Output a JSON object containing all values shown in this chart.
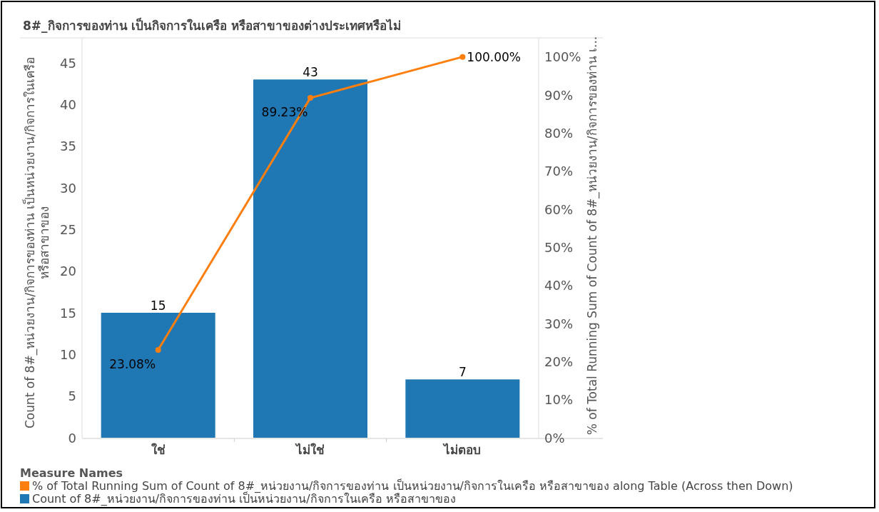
{
  "chart_data": {
    "type": "bar",
    "title": "8#_กิจการของท่าน เป็นกิจการในเครือ หรือสาขาของต่างประเทศหรือไม่",
    "ylabel": "Count of 8#_หน่วยงาน/กิจการของท่าน เป็นหน่วยงาน/กิจการในเครือ หรือสาขาของ",
    "y2label": "% of Total Running Sum of Count of 8#_หน่วยงาน/กิจการของท่าน เ...",
    "legend_title": "Measure Names",
    "legend": "bottom",
    "marker": "circle",
    "categories": [
      "ใช่",
      "ไม่ใช่",
      "ไม่ตอบ"
    ],
    "ylim": [
      0,
      48
    ],
    "yticks": [
      0,
      5,
      10,
      15,
      20,
      25,
      30,
      35,
      40,
      45
    ],
    "y2lim": [
      0,
      105
    ],
    "y2ticks": [
      {
        "value": 0,
        "label": "0%"
      },
      {
        "value": 10,
        "label": "10%"
      },
      {
        "value": 20,
        "label": "20%"
      },
      {
        "value": 30,
        "label": "30%"
      },
      {
        "value": 40,
        "label": "40%"
      },
      {
        "value": 50,
        "label": "50%"
      },
      {
        "value": 60,
        "label": "60%"
      },
      {
        "value": 70,
        "label": "70%"
      },
      {
        "value": 80,
        "label": "80%"
      },
      {
        "value": 90,
        "label": "90%"
      },
      {
        "value": 100,
        "label": "100%"
      }
    ],
    "series": [
      {
        "name": "% of Total Running Sum of Count of 8#_หน่วยงาน/กิจการของท่าน เป็นหน่วยงาน/กิจการในเครือ หรือสาขาของ along Table (Across then Down)",
        "type": "line",
        "axis": "y2",
        "color": "#ff7f0e",
        "values": [
          23.08,
          89.23,
          100
        ],
        "value_labels": [
          "23.08%",
          "89.23%",
          "100.00%"
        ]
      },
      {
        "name": "Count of 8#_หน่วยงาน/กิจการของท่าน เป็นหน่วยงาน/กิจการในเครือ หรือสาขาของ",
        "color": "#1f77b4",
        "values": [
          15,
          43,
          7
        ],
        "value_labels": [
          "15",
          "43",
          "7"
        ]
      }
    ]
  }
}
